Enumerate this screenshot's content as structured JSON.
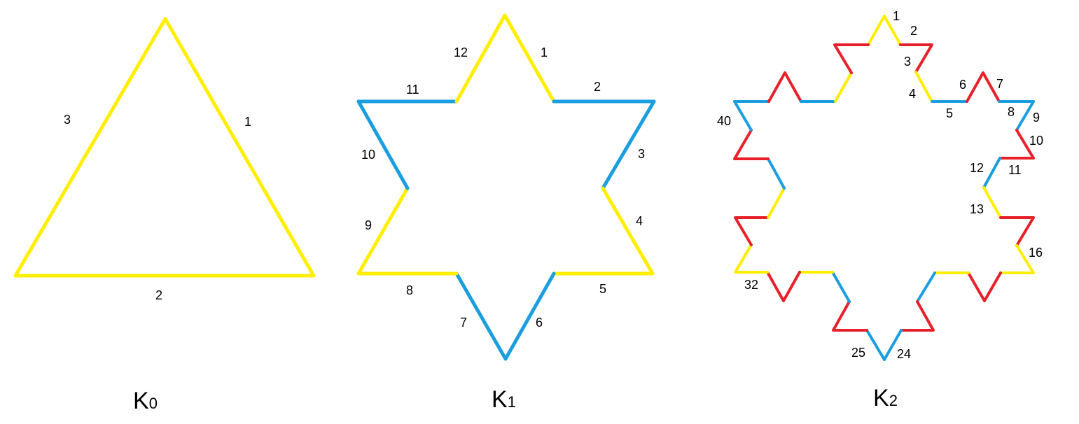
{
  "colors": {
    "yellow": "#ffee00",
    "blue": "#1a9ee0",
    "red": "#e8202a",
    "text": "#000000",
    "background": "#ffffff"
  },
  "figures": [
    {
      "id": "k0",
      "title": "K",
      "subscript": "0",
      "segment_labels": [
        "1",
        "2",
        "3"
      ]
    },
    {
      "id": "k1",
      "title": "K",
      "subscript": "1",
      "segment_labels": [
        "1",
        "2",
        "3",
        "4",
        "5",
        "6",
        "7",
        "8",
        "9",
        "10",
        "11",
        "12"
      ]
    },
    {
      "id": "k2",
      "title": "K",
      "subscript": "2",
      "segment_labels": [
        "1",
        "2",
        "3",
        "4",
        "5",
        "6",
        "7",
        "8",
        "9",
        "10",
        "11",
        "12",
        "13",
        "16",
        "24",
        "25",
        "32",
        "40"
      ]
    }
  ]
}
